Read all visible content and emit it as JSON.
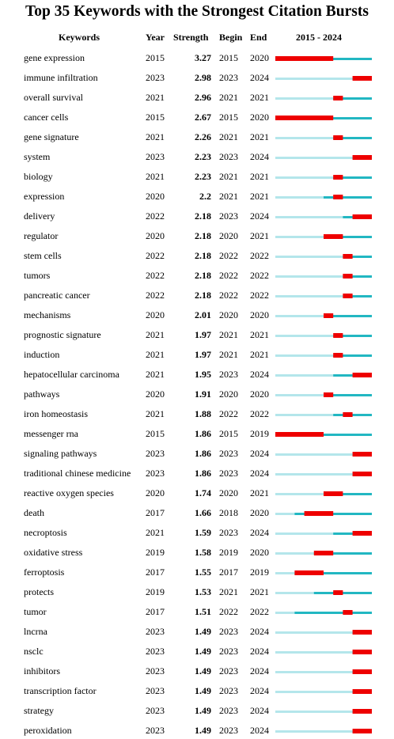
{
  "chart_data": {
    "type": "table",
    "title": "Top 35 Keywords with the Strongest Citation Bursts",
    "columns": [
      "Keywords",
      "Year",
      "Strength",
      "Begin",
      "End",
      "2015 - 2024"
    ],
    "timeline": {
      "start": 2015,
      "end": 2024
    },
    "colors": {
      "before": "#b4e6eb",
      "active": "#22b7c2",
      "burst": "#ee0000"
    },
    "rows": [
      {
        "keyword": "gene expression",
        "year": "2015",
        "strength": "3.27",
        "begin": "2015",
        "end": "2020"
      },
      {
        "keyword": "immune infiltration",
        "year": "2023",
        "strength": "2.98",
        "begin": "2023",
        "end": "2024"
      },
      {
        "keyword": "overall survival",
        "year": "2021",
        "strength": "2.96",
        "begin": "2021",
        "end": "2021"
      },
      {
        "keyword": "cancer cells",
        "year": "2015",
        "strength": "2.67",
        "begin": "2015",
        "end": "2020"
      },
      {
        "keyword": "gene signature",
        "year": "2021",
        "strength": "2.26",
        "begin": "2021",
        "end": "2021"
      },
      {
        "keyword": "system",
        "year": "2023",
        "strength": "2.23",
        "begin": "2023",
        "end": "2024"
      },
      {
        "keyword": "biology",
        "year": "2021",
        "strength": "2.23",
        "begin": "2021",
        "end": "2021"
      },
      {
        "keyword": "expression",
        "year": "2020",
        "strength": "2.2",
        "begin": "2021",
        "end": "2021"
      },
      {
        "keyword": "delivery",
        "year": "2022",
        "strength": "2.18",
        "begin": "2023",
        "end": "2024"
      },
      {
        "keyword": "regulator",
        "year": "2020",
        "strength": "2.18",
        "begin": "2020",
        "end": "2021"
      },
      {
        "keyword": "stem cells",
        "year": "2022",
        "strength": "2.18",
        "begin": "2022",
        "end": "2022"
      },
      {
        "keyword": "tumors",
        "year": "2022",
        "strength": "2.18",
        "begin": "2022",
        "end": "2022"
      },
      {
        "keyword": "pancreatic cancer",
        "year": "2022",
        "strength": "2.18",
        "begin": "2022",
        "end": "2022"
      },
      {
        "keyword": "mechanisms",
        "year": "2020",
        "strength": "2.01",
        "begin": "2020",
        "end": "2020"
      },
      {
        "keyword": "prognostic signature",
        "year": "2021",
        "strength": "1.97",
        "begin": "2021",
        "end": "2021"
      },
      {
        "keyword": "induction",
        "year": "2021",
        "strength": "1.97",
        "begin": "2021",
        "end": "2021"
      },
      {
        "keyword": "hepatocellular carcinoma",
        "year": "2021",
        "strength": "1.95",
        "begin": "2023",
        "end": "2024"
      },
      {
        "keyword": "pathways",
        "year": "2020",
        "strength": "1.91",
        "begin": "2020",
        "end": "2020"
      },
      {
        "keyword": "iron homeostasis",
        "year": "2021",
        "strength": "1.88",
        "begin": "2022",
        "end": "2022"
      },
      {
        "keyword": "messenger rna",
        "year": "2015",
        "strength": "1.86",
        "begin": "2015",
        "end": "2019"
      },
      {
        "keyword": "signaling pathways",
        "year": "2023",
        "strength": "1.86",
        "begin": "2023",
        "end": "2024"
      },
      {
        "keyword": "traditional chinese medicine",
        "year": "2023",
        "strength": "1.86",
        "begin": "2023",
        "end": "2024"
      },
      {
        "keyword": "reactive oxygen species",
        "year": "2020",
        "strength": "1.74",
        "begin": "2020",
        "end": "2021"
      },
      {
        "keyword": "death",
        "year": "2017",
        "strength": "1.66",
        "begin": "2018",
        "end": "2020"
      },
      {
        "keyword": "necroptosis",
        "year": "2021",
        "strength": "1.59",
        "begin": "2023",
        "end": "2024"
      },
      {
        "keyword": "oxidative stress",
        "year": "2019",
        "strength": "1.58",
        "begin": "2019",
        "end": "2020"
      },
      {
        "keyword": "ferroptosis",
        "year": "2017",
        "strength": "1.55",
        "begin": "2017",
        "end": "2019"
      },
      {
        "keyword": "protects",
        "year": "2019",
        "strength": "1.53",
        "begin": "2021",
        "end": "2021"
      },
      {
        "keyword": "tumor",
        "year": "2017",
        "strength": "1.51",
        "begin": "2022",
        "end": "2022"
      },
      {
        "keyword": "lncrna",
        "year": "2023",
        "strength": "1.49",
        "begin": "2023",
        "end": "2024"
      },
      {
        "keyword": "nsclc",
        "year": "2023",
        "strength": "1.49",
        "begin": "2023",
        "end": "2024"
      },
      {
        "keyword": "inhibitors",
        "year": "2023",
        "strength": "1.49",
        "begin": "2023",
        "end": "2024"
      },
      {
        "keyword": "transcription factor",
        "year": "2023",
        "strength": "1.49",
        "begin": "2023",
        "end": "2024"
      },
      {
        "keyword": "strategy",
        "year": "2023",
        "strength": "1.49",
        "begin": "2023",
        "end": "2024"
      },
      {
        "keyword": "peroxidation",
        "year": "2023",
        "strength": "1.49",
        "begin": "2023",
        "end": "2024"
      }
    ]
  }
}
